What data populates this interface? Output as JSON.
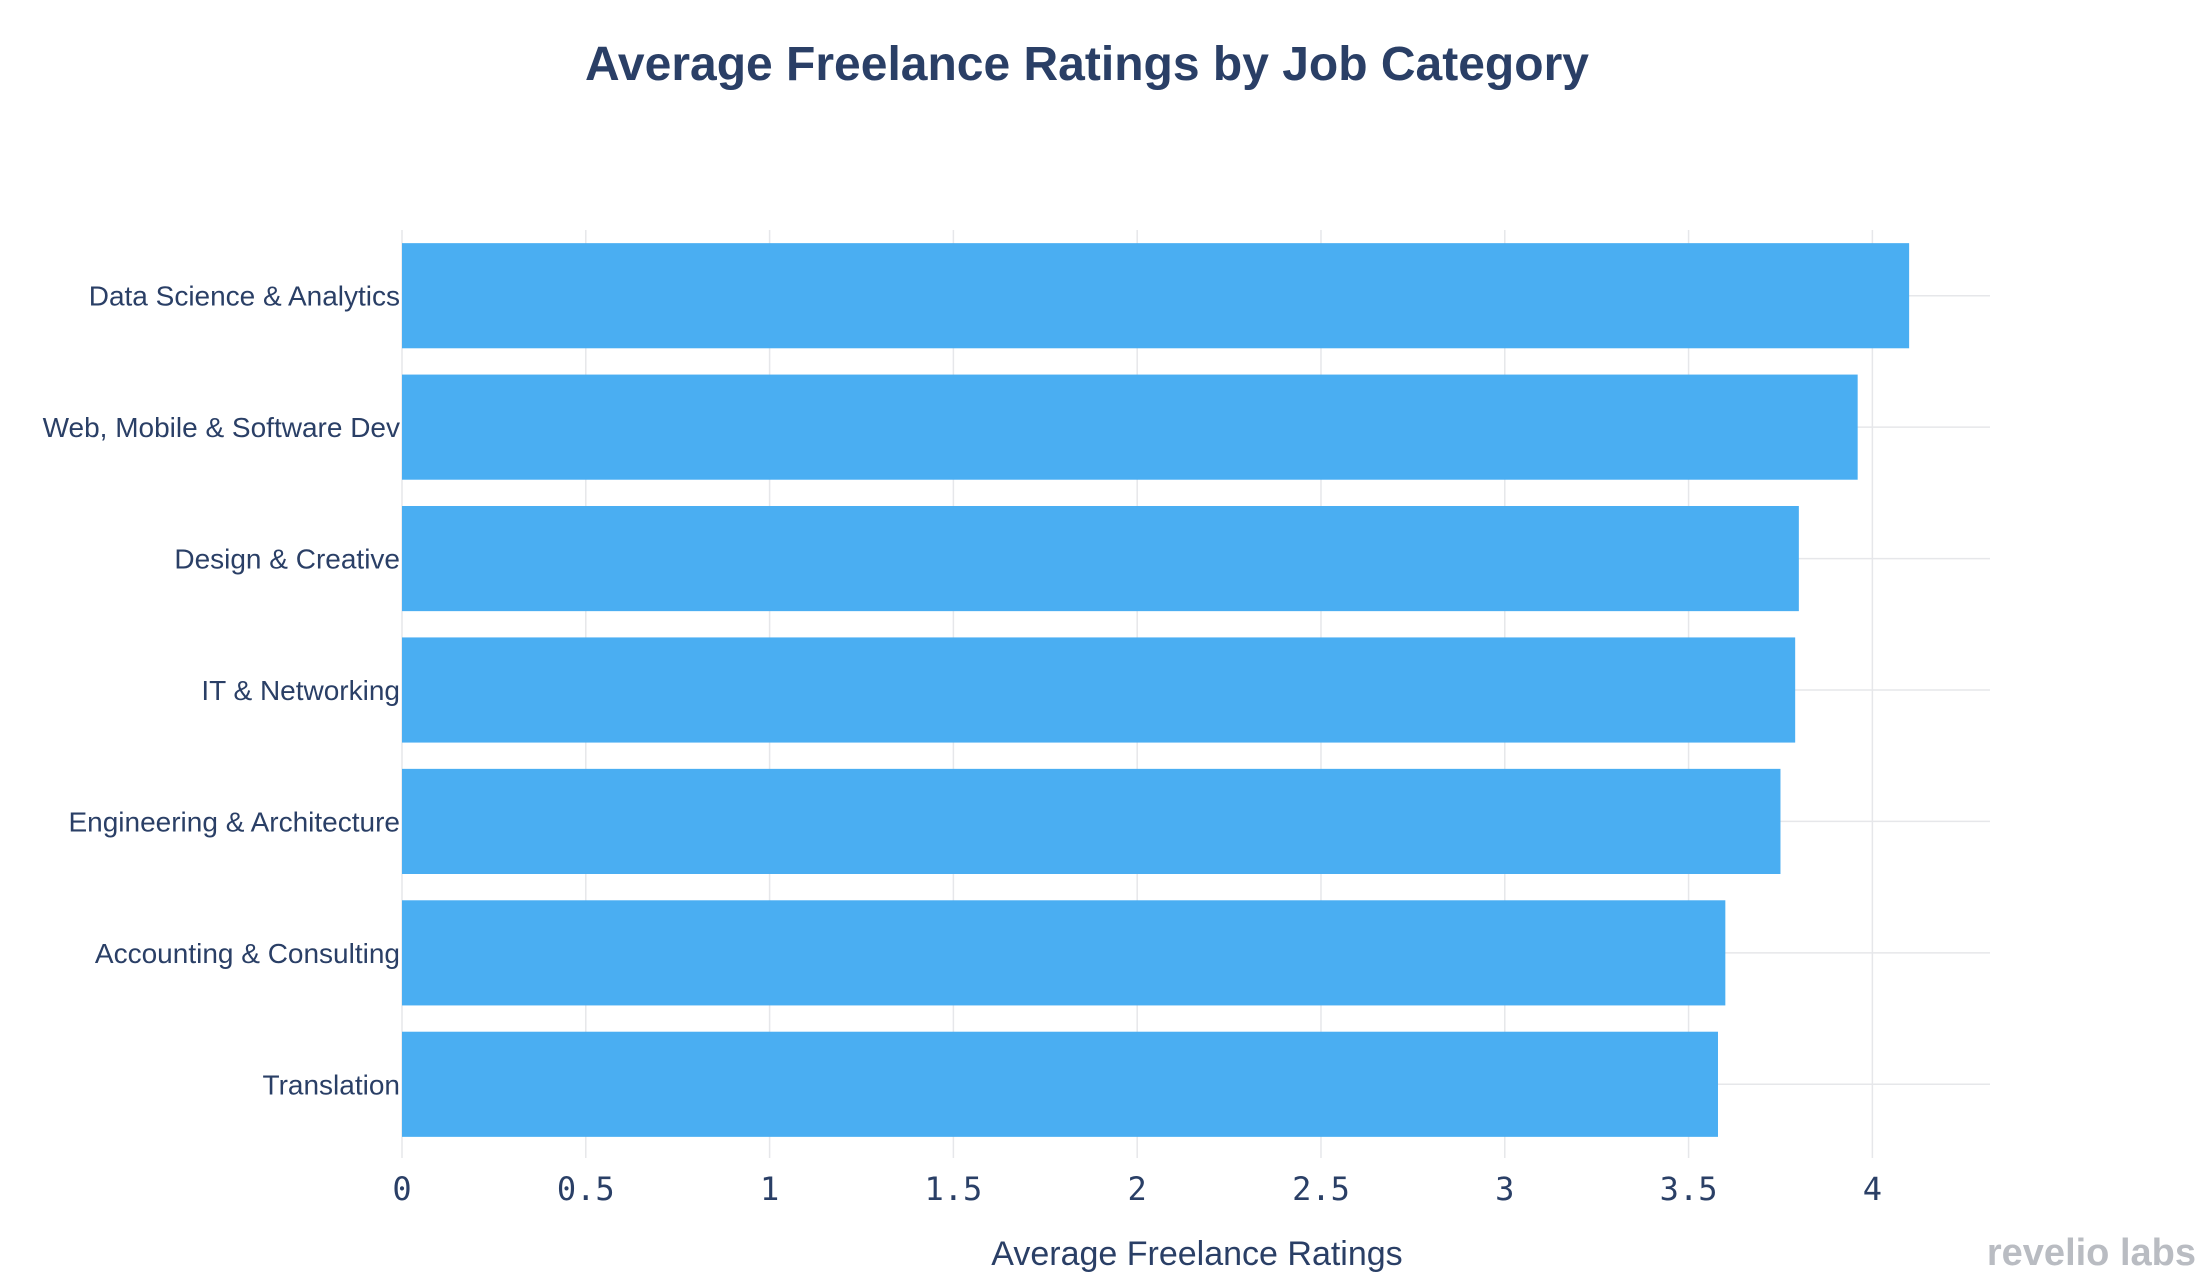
{
  "chart_data": {
    "type": "bar",
    "orientation": "horizontal",
    "title": "Average Freelance Ratings by Job Category",
    "xlabel": "Average Freelance Ratings",
    "ylabel": "",
    "categories": [
      "Data Science & Analytics",
      "Web, Mobile & Software Dev",
      "Design & Creative",
      "IT & Networking",
      "Engineering & Architecture",
      "Accounting & Consulting",
      "Translation"
    ],
    "values": [
      4.1,
      3.96,
      3.8,
      3.79,
      3.75,
      3.6,
      3.58
    ],
    "xlim": [
      0,
      4.32
    ],
    "xticks": [
      0,
      0.5,
      1,
      1.5,
      2,
      2.5,
      3,
      3.5,
      4
    ],
    "xtick_labels": [
      "0",
      "0.5",
      "1",
      "1.5",
      "2",
      "2.5",
      "3",
      "3.5",
      "4"
    ],
    "grid": true,
    "bar_color": "#4aaef2"
  },
  "branding": {
    "logo_text": "revelio labs"
  }
}
